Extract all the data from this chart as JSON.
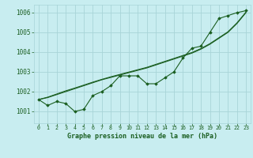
{
  "title": "Graphe pression niveau de la mer (hPa)",
  "background_color": "#c8edf0",
  "grid_color": "#a8d4d8",
  "line_color": "#1a5e20",
  "marker_color": "#1a5e20",
  "x_ticks": [
    0,
    1,
    2,
    3,
    4,
    5,
    6,
    7,
    8,
    9,
    10,
    11,
    12,
    13,
    14,
    15,
    16,
    17,
    18,
    19,
    20,
    21,
    22,
    23
  ],
  "y_ticks": [
    1001,
    1002,
    1003,
    1004,
    1005,
    1006
  ],
  "ylim": [
    1000.4,
    1006.4
  ],
  "xlim": [
    -0.5,
    23.5
  ],
  "main_series": [
    1001.6,
    1001.3,
    1001.5,
    1001.4,
    1001.0,
    1001.1,
    1001.8,
    1002.0,
    1002.3,
    1002.8,
    1002.8,
    1002.8,
    1002.4,
    1002.4,
    1002.7,
    1003.0,
    1003.7,
    1004.2,
    1004.3,
    1005.0,
    1005.7,
    1005.85,
    1006.0,
    1006.1
  ],
  "smooth_line1": [
    1001.6,
    1001.7,
    1001.85,
    1002.0,
    1002.15,
    1002.3,
    1002.45,
    1002.6,
    1002.72,
    1002.84,
    1002.96,
    1003.08,
    1003.2,
    1003.35,
    1003.5,
    1003.65,
    1003.8,
    1003.95,
    1004.15,
    1004.4,
    1004.7,
    1005.0,
    1005.45,
    1006.0
  ],
  "smooth_line2": [
    1001.6,
    1001.72,
    1001.88,
    1002.04,
    1002.18,
    1002.33,
    1002.48,
    1002.62,
    1002.75,
    1002.87,
    1002.99,
    1003.11,
    1003.23,
    1003.38,
    1003.53,
    1003.68,
    1003.83,
    1003.98,
    1004.18,
    1004.43,
    1004.73,
    1005.03,
    1005.48,
    1006.03
  ]
}
